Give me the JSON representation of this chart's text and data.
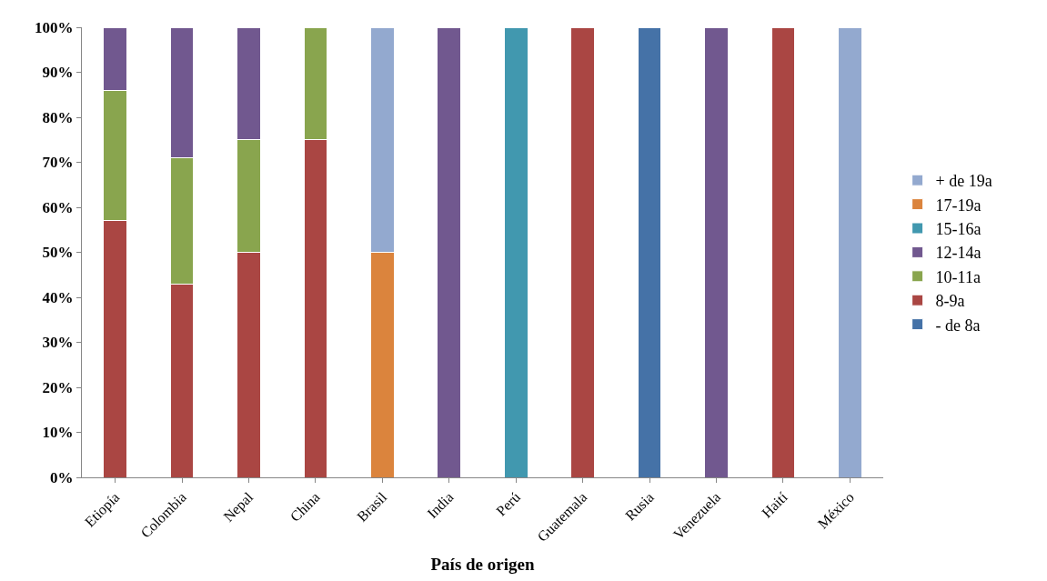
{
  "chart_data": {
    "type": "bar",
    "stacked": true,
    "xlabel": "País de origen",
    "categories": [
      "Etiopía",
      "Colombia",
      "Nepal",
      "China",
      "Brasil",
      "India",
      "Perú",
      "Guatemala",
      "Rusia",
      "Venezuela",
      "Haití",
      "México"
    ],
    "series": [
      {
        "name": "- de 8a",
        "color": "#4572a7",
        "values": [
          null,
          null,
          null,
          null,
          null,
          null,
          null,
          null,
          100,
          null,
          null,
          null
        ]
      },
      {
        "name": "8-9a",
        "color": "#aa4643",
        "values": [
          57,
          43,
          50,
          75,
          null,
          null,
          null,
          100,
          null,
          null,
          100,
          null
        ]
      },
      {
        "name": "10-11a",
        "color": "#89a54e",
        "values": [
          29,
          28,
          25,
          25,
          null,
          null,
          null,
          null,
          null,
          null,
          null,
          null
        ]
      },
      {
        "name": "12-14a",
        "color": "#71588f",
        "values": [
          14,
          29,
          25,
          null,
          null,
          100,
          null,
          null,
          null,
          100,
          null,
          null
        ]
      },
      {
        "name": "15-16a",
        "color": "#4198af",
        "values": [
          null,
          null,
          null,
          null,
          null,
          null,
          100,
          null,
          null,
          null,
          null,
          null
        ]
      },
      {
        "name": "17-19a",
        "color": "#db843d",
        "values": [
          null,
          null,
          null,
          null,
          50,
          null,
          null,
          null,
          null,
          null,
          null,
          null
        ]
      },
      {
        "name": "+ de 19a",
        "color": "#93a9cf",
        "values": [
          null,
          null,
          null,
          null,
          50,
          null,
          null,
          null,
          null,
          null,
          null,
          100
        ]
      }
    ],
    "ylim": [
      0,
      100
    ],
    "yticks": [
      {
        "value": 0,
        "label": "0%"
      },
      {
        "value": 10,
        "label": "10%"
      },
      {
        "value": 20,
        "label": "20%"
      },
      {
        "value": 30,
        "label": "30%"
      },
      {
        "value": 40,
        "label": "40%"
      },
      {
        "value": 50,
        "label": "50%"
      },
      {
        "value": 60,
        "label": "60%"
      },
      {
        "value": 70,
        "label": "70%"
      },
      {
        "value": 80,
        "label": "80%"
      },
      {
        "value": 90,
        "label": "90%"
      },
      {
        "value": 100,
        "label": "100%"
      }
    ],
    "legend": "right"
  }
}
